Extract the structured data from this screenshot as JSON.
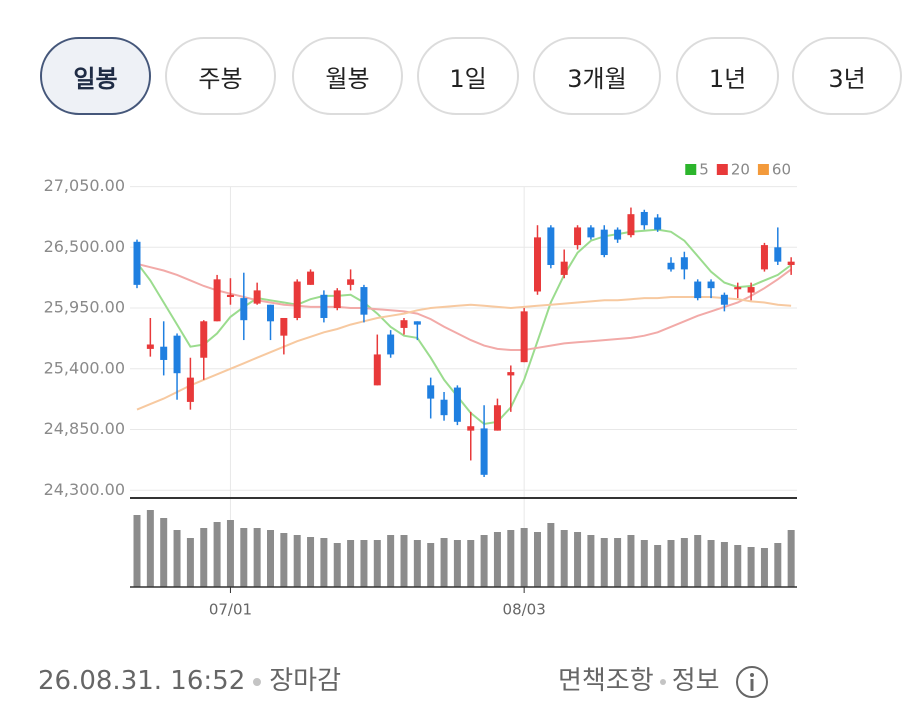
{
  "tabs": [
    "일봉",
    "주봉",
    "월봉",
    "1일",
    "3개월",
    "1년",
    "3년"
  ],
  "chart_data": {
    "type": "candlestick",
    "categories": [
      null,
      null,
      null,
      null,
      null,
      null,
      null,
      "07/01",
      null,
      null,
      null,
      null,
      null,
      null,
      null,
      null,
      null,
      null,
      null,
      null,
      null,
      null,
      null,
      null,
      null,
      null,
      null,
      null,
      null,
      "08/03",
      null,
      null,
      null,
      null,
      null,
      null,
      null,
      null,
      null,
      null,
      null,
      null,
      null,
      null,
      null,
      null,
      null,
      null,
      null,
      null
    ],
    "open": [
      26550,
      25580,
      25600,
      25700,
      25100,
      25500,
      25830,
      26050,
      26040,
      25990,
      25980,
      25700,
      25860,
      26160,
      26070,
      25950,
      26160,
      26140,
      25250,
      25710,
      25770,
      25830,
      25250,
      25120,
      25230,
      24840,
      24860,
      24840,
      25340,
      25460,
      26100,
      26680,
      26250,
      26520,
      26680,
      26660,
      26660,
      26610,
      26820,
      26770,
      26360,
      26410,
      26190,
      26190,
      26070,
      26120,
      26090,
      26300,
      26500,
      26340
    ],
    "high": [
      26570,
      25860,
      25830,
      25720,
      25500,
      25840,
      26250,
      26220,
      26270,
      26180,
      25980,
      25860,
      26210,
      26300,
      26110,
      26130,
      26300,
      26160,
      25710,
      25750,
      25860,
      25830,
      25320,
      25190,
      25250,
      25010,
      25070,
      25130,
      25430,
      25950,
      26700,
      26700,
      26480,
      26700,
      26700,
      26700,
      26680,
      26860,
      26840,
      26800,
      26410,
      26460,
      26210,
      26210,
      26090,
      26180,
      26180,
      26540,
      26680,
      26410
    ],
    "low": [
      26130,
      25510,
      25340,
      25120,
      25030,
      25300,
      25830,
      25980,
      25660,
      25980,
      25660,
      25530,
      25840,
      26160,
      25820,
      25930,
      26110,
      25820,
      25250,
      25500,
      25710,
      25660,
      24950,
      24930,
      24890,
      24570,
      24420,
      24840,
      25010,
      25460,
      26070,
      26310,
      26220,
      26480,
      26570,
      26410,
      26540,
      26590,
      26660,
      26640,
      26280,
      26210,
      26020,
      26040,
      25920,
      26040,
      26020,
      26280,
      26340,
      26250
    ],
    "close": [
      26160,
      25620,
      25480,
      25360,
      25320,
      25830,
      26210,
      26070,
      25840,
      26110,
      25830,
      25860,
      26190,
      26280,
      25860,
      26110,
      26210,
      25890,
      25530,
      25530,
      25840,
      25800,
      25130,
      24980,
      24920,
      24880,
      24440,
      25070,
      25370,
      25920,
      26590,
      26340,
      26370,
      26680,
      26590,
      26430,
      26570,
      26800,
      26700,
      26660,
      26300,
      26300,
      26040,
      26130,
      25980,
      26140,
      26140,
      26520,
      26370,
      26370
    ],
    "up_color": "#e8393a",
    "down_color": "#1f7fe0",
    "series": [
      {
        "name": "5",
        "color": "#2cb52c",
        "line_color": "#9bdc8e",
        "values": [
          26360,
          26200,
          26000,
          25800,
          25600,
          25620,
          25720,
          25870,
          25960,
          26040,
          26020,
          26000,
          25980,
          26030,
          26060,
          26060,
          26070,
          26000,
          25900,
          25780,
          25700,
          25680,
          25500,
          25300,
          25150,
          25000,
          24900,
          24920,
          25050,
          25300,
          25650,
          26000,
          26250,
          26450,
          26560,
          26600,
          26620,
          26640,
          26650,
          26660,
          26640,
          26560,
          26420,
          26280,
          26180,
          26140,
          26150,
          26200,
          26250,
          26340
        ]
      },
      {
        "name": "20",
        "color": "#e8393a",
        "line_color": "#f2aaa8",
        "values": [
          26350,
          26320,
          26290,
          26250,
          26200,
          26150,
          26110,
          26080,
          26050,
          26020,
          26000,
          25980,
          25970,
          25960,
          25960,
          25960,
          25950,
          25950,
          25940,
          25930,
          25920,
          25900,
          25850,
          25780,
          25720,
          25660,
          25610,
          25580,
          25570,
          25570,
          25590,
          25610,
          25630,
          25640,
          25650,
          25660,
          25670,
          25680,
          25700,
          25730,
          25780,
          25830,
          25880,
          25920,
          25960,
          26000,
          26060,
          26130,
          26210,
          26300
        ]
      },
      {
        "name": "60",
        "color": "#f39a3b",
        "line_color": "#f7c9a0",
        "values": [
          25030,
          25080,
          25130,
          25190,
          25250,
          25300,
          25350,
          25400,
          25450,
          25500,
          25550,
          25600,
          25650,
          25690,
          25730,
          25760,
          25800,
          25830,
          25860,
          25880,
          25900,
          25930,
          25950,
          25960,
          25970,
          25980,
          25970,
          25960,
          25950,
          25960,
          25970,
          25980,
          25990,
          26000,
          26010,
          26020,
          26020,
          26030,
          26040,
          26040,
          26050,
          26050,
          26050,
          26050,
          26040,
          26030,
          26010,
          26000,
          25980,
          25970
        ]
      }
    ],
    "ylim": [
      24230,
      27200
    ],
    "yticks": [
      {
        "value": 27050,
        "label": "27,050.00"
      },
      {
        "value": 26500,
        "label": "26,500.00"
      },
      {
        "value": 25950,
        "label": "25,950.00"
      },
      {
        "value": 25400,
        "label": "25,400.00"
      },
      {
        "value": 24850,
        "label": "24,850.00"
      },
      {
        "value": 24300,
        "label": "24,300.00"
      }
    ],
    "grid": true,
    "legend": "top-right",
    "volume": {
      "color": "#8c8c8c",
      "ylim": [
        0,
        82
      ],
      "values": [
        72,
        77,
        69,
        57,
        49,
        59,
        65,
        67,
        59,
        59,
        57,
        54,
        52,
        50,
        49,
        44,
        47,
        47,
        47,
        52,
        52,
        47,
        44,
        49,
        47,
        47,
        52,
        55,
        57,
        59,
        55,
        64,
        57,
        55,
        52,
        49,
        49,
        52,
        47,
        42,
        47,
        49,
        52,
        47,
        45,
        42,
        40,
        39,
        44,
        57
      ]
    }
  },
  "footer": {
    "timestamp": "26.08.31. 16:52",
    "status": "장마감",
    "disclaimer": "면책조항",
    "info": "정보"
  }
}
